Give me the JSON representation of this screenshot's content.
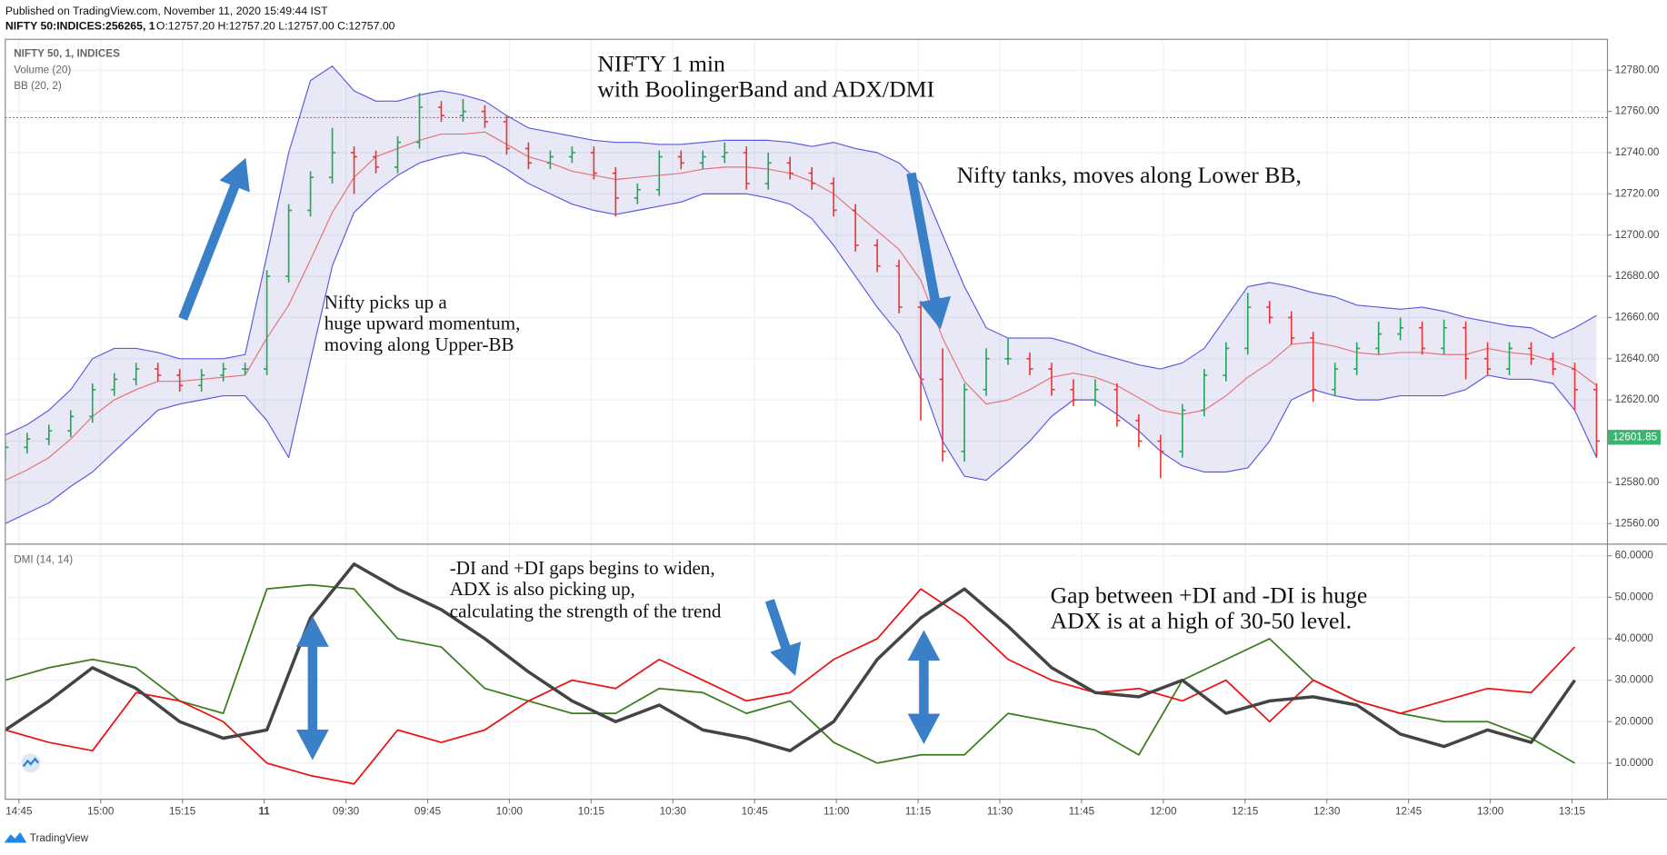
{
  "header": {
    "published": "Published on TradingView.com, November 11, 2020 15:49:44 IST",
    "symbol": "NIFTY 50:INDICES:256265, 1",
    "ohlc": "O:12757.20 H:12757.20 L:12757.00 C:12757.00"
  },
  "footer": "TradingView",
  "chart_data": [
    {
      "type": "candlestick",
      "legend_title": "NIFTY 50, 1, INDICES",
      "indicator_labels": [
        "Volume (20)",
        "BB (20, 2)"
      ],
      "annotations": [
        {
          "lines": [
            "NIFTY 1 min",
            "with BoolingerBand and ADX/DMI"
          ]
        },
        {
          "lines": [
            "Nifty tanks, moves along Lower BB,"
          ]
        },
        {
          "lines": [
            "Nifty picks  up a",
            "huge upward momentum,",
            "moving along Upper-BB"
          ]
        }
      ],
      "xlim": [
        0,
        294
      ],
      "ylim": [
        12550,
        12795
      ],
      "yticks": [
        {
          "value": 12560,
          "label": "12560.00"
        },
        {
          "value": 12580,
          "label": "12580.00"
        },
        {
          "value": 12600,
          "label": "12600.00"
        },
        {
          "value": 12620,
          "label": "12620.00"
        },
        {
          "value": 12640,
          "label": "12640.00"
        },
        {
          "value": 12660,
          "label": "12660.00"
        },
        {
          "value": 12680,
          "label": "12680.00"
        },
        {
          "value": 12700,
          "label": "12700.00"
        },
        {
          "value": 12720,
          "label": "12720.00"
        },
        {
          "value": 12740,
          "label": "12740.00"
        },
        {
          "value": 12760,
          "label": "12760.00"
        },
        {
          "value": 12780,
          "label": "12780.00"
        }
      ],
      "grid": true,
      "up_color": "#26a65b",
      "down_color": "#e53935",
      "band_fill": "rgba(110,110,200,0.16)",
      "hline": 12757,
      "hline_color": "#e53935",
      "last_price": {
        "value": 12601.85,
        "label": "12601.85"
      },
      "last_price_color": "#3cb371",
      "x": [
        0,
        4,
        8,
        12,
        16,
        20,
        24,
        28,
        32,
        36,
        40,
        44,
        48,
        52,
        56,
        60,
        64,
        68,
        72,
        76,
        80,
        84,
        88,
        92,
        96,
        100,
        104,
        108,
        112,
        116,
        120,
        124,
        128,
        132,
        136,
        140,
        144,
        148,
        152,
        156,
        160,
        164,
        168,
        172,
        176,
        180,
        184,
        188,
        192,
        196,
        200,
        204,
        208,
        212,
        216,
        220,
        224,
        228,
        232,
        236,
        240,
        244,
        248,
        252,
        256,
        260,
        264,
        268,
        272,
        276,
        280,
        284,
        288,
        292
      ],
      "open": [
        12593,
        12597,
        12601,
        12605,
        12612,
        12625,
        12630,
        12635,
        12632,
        12627,
        12632,
        12635,
        12635,
        12680,
        12712,
        12728,
        12740,
        12738,
        12733,
        12745,
        12762,
        12758,
        12760,
        12755,
        12742,
        12735,
        12738,
        12740,
        12730,
        12718,
        12722,
        12738,
        12735,
        12738,
        12740,
        12725,
        12735,
        12730,
        12725,
        12712,
        12695,
        12685,
        12665,
        12630,
        12595,
        12625,
        12640,
        12640,
        12635,
        12625,
        12620,
        12625,
        12610,
        12600,
        12595,
        12615,
        12632,
        12645,
        12665,
        12660,
        12650,
        12625,
        12635,
        12645,
        12652,
        12655,
        12645,
        12655,
        12640,
        12635,
        12645,
        12640,
        12635,
        12625
      ],
      "high": [
        12600,
        12604,
        12608,
        12615,
        12628,
        12633,
        12638,
        12638,
        12635,
        12635,
        12638,
        12638,
        12683,
        12715,
        12731,
        12752,
        12743,
        12741,
        12748,
        12769,
        12765,
        12766,
        12763,
        12758,
        12745,
        12741,
        12743,
        12743,
        12733,
        12725,
        12741,
        12741,
        12741,
        12745,
        12743,
        12740,
        12738,
        12733,
        12728,
        12715,
        12698,
        12688,
        12668,
        12645,
        12628,
        12645,
        12650,
        12643,
        12638,
        12630,
        12630,
        12628,
        12613,
        12603,
        12618,
        12635,
        12648,
        12672,
        12668,
        12663,
        12653,
        12638,
        12648,
        12658,
        12660,
        12658,
        12659,
        12658,
        12648,
        12648,
        12648,
        12643,
        12638,
        12628
      ],
      "low": [
        12590,
        12594,
        12598,
        12602,
        12609,
        12622,
        12627,
        12629,
        12624,
        12624,
        12629,
        12632,
        12632,
        12677,
        12709,
        12725,
        12720,
        12730,
        12730,
        12742,
        12755,
        12755,
        12752,
        12739,
        12732,
        12732,
        12735,
        12727,
        12709,
        12715,
        12719,
        12732,
        12732,
        12735,
        12722,
        12722,
        12727,
        12722,
        12709,
        12692,
        12682,
        12662,
        12610,
        12590,
        12590,
        12622,
        12637,
        12632,
        12622,
        12617,
        12617,
        12607,
        12597,
        12582,
        12592,
        12612,
        12629,
        12642,
        12657,
        12647,
        12619,
        12622,
        12632,
        12642,
        12649,
        12642,
        12642,
        12630,
        12632,
        12632,
        12637,
        12632,
        12615,
        12592
      ],
      "close": [
        12597,
        12601,
        12605,
        12612,
        12625,
        12630,
        12635,
        12632,
        12627,
        12632,
        12635,
        12635,
        12680,
        12712,
        12728,
        12740,
        12738,
        12733,
        12745,
        12762,
        12758,
        12760,
        12755,
        12742,
        12735,
        12738,
        12740,
        12730,
        12718,
        12722,
        12738,
        12735,
        12738,
        12740,
        12725,
        12735,
        12730,
        12725,
        12712,
        12695,
        12685,
        12665,
        12630,
        12595,
        12625,
        12640,
        12640,
        12635,
        12625,
        12620,
        12625,
        12610,
        12600,
        12595,
        12615,
        12632,
        12645,
        12665,
        12660,
        12650,
        12625,
        12635,
        12645,
        12652,
        12655,
        12645,
        12655,
        12640,
        12635,
        12645,
        12640,
        12635,
        12625,
        12600
      ],
      "series": [
        {
          "color": "#5a5ae0",
          "values": [
            12603,
            12608,
            12615,
            12625,
            12640,
            12645,
            12645,
            12643,
            12640,
            12640,
            12640,
            12642,
            12690,
            12740,
            12775,
            12782,
            12770,
            12765,
            12765,
            12768,
            12770,
            12768,
            12765,
            12758,
            12752,
            12750,
            12748,
            12746,
            12745,
            12745,
            12744,
            12744,
            12745,
            12746,
            12746,
            12746,
            12745,
            12743,
            12745,
            12742,
            12740,
            12735,
            12725,
            12700,
            12675,
            12655,
            12650,
            12650,
            12650,
            12647,
            12643,
            12640,
            12637,
            12635,
            12638,
            12645,
            12660,
            12675,
            12677,
            12675,
            12672,
            12670,
            12666,
            12665,
            12664,
            12665,
            12663,
            12660,
            12658,
            12656,
            12655,
            12650,
            12655,
            12661
          ]
        },
        {
          "color": "#e57373",
          "values": [
            12581,
            12586,
            12592,
            12601,
            12612,
            12620,
            12625,
            12629,
            12629,
            12630,
            12631,
            12632,
            12650,
            12666,
            12688,
            12711,
            12728,
            12738,
            12742,
            12746,
            12749,
            12749,
            12750,
            12744,
            12738,
            12735,
            12731,
            12729,
            12727,
            12728,
            12729,
            12730,
            12732,
            12733,
            12733,
            12732,
            12730,
            12726,
            12720,
            12711,
            12702,
            12693,
            12678,
            12650,
            12629,
            12618,
            12620,
            12625,
            12631,
            12633,
            12631,
            12627,
            12621,
            12615,
            12613,
            12615,
            12622,
            12631,
            12638,
            12647,
            12648,
            12646,
            12643,
            12642,
            12643,
            12643,
            12642,
            12642,
            12645,
            12643,
            12642,
            12639,
            12635,
            12627
          ]
        },
        {
          "color": "#5a5ae0",
          "values": [
            12560,
            12565,
            12570,
            12578,
            12585,
            12595,
            12605,
            12615,
            12618,
            12620,
            12622,
            12622,
            12610,
            12592,
            12639,
            12685,
            12711,
            12721,
            12729,
            12735,
            12738,
            12740,
            12738,
            12732,
            12725,
            12720,
            12715,
            12712,
            12710,
            12712,
            12714,
            12716,
            12720,
            12720,
            12720,
            12718,
            12715,
            12708,
            12695,
            12680,
            12665,
            12652,
            12630,
            12600,
            12583,
            12581,
            12590,
            12600,
            12612,
            12620,
            12620,
            12613,
            12605,
            12595,
            12588,
            12585,
            12585,
            12587,
            12600,
            12620,
            12625,
            12622,
            12620,
            12620,
            12622,
            12622,
            12622,
            12625,
            12632,
            12630,
            12630,
            12628,
            12615,
            12592
          ]
        }
      ]
    },
    {
      "type": "line",
      "legend_title": "DMI (14, 14)",
      "annotations": [
        {
          "lines": [
            "-DI and +DI gaps begins to widen,",
            "ADX is also picking up,",
            "calculating the strength of the trend"
          ]
        },
        {
          "lines": [
            "Gap between +DI and -DI is huge",
            "ADX is at a high of 30-50 level."
          ]
        }
      ],
      "xlim": [
        0,
        294
      ],
      "ylim": [
        1.3,
        62.8
      ],
      "yticks": [
        {
          "value": 10,
          "label": "10.0000"
        },
        {
          "value": 20,
          "label": "20.0000"
        },
        {
          "value": 30,
          "label": "30.0000"
        },
        {
          "value": 40,
          "label": "40.0000"
        },
        {
          "value": 50,
          "label": "50.0000"
        },
        {
          "value": 60,
          "label": "60.0000"
        }
      ],
      "xticks": [
        {
          "value": 2.5,
          "label": "14:45"
        },
        {
          "value": 17.5,
          "label": "15:00"
        },
        {
          "value": 32.5,
          "label": "15:15"
        },
        {
          "value": 47.5,
          "label": "11"
        },
        {
          "value": 62.5,
          "label": "09:30"
        },
        {
          "value": 77.5,
          "label": "09:45"
        },
        {
          "value": 92.5,
          "label": "10:00"
        },
        {
          "value": 107.5,
          "label": "10:15"
        },
        {
          "value": 122.5,
          "label": "10:30"
        },
        {
          "value": 137.5,
          "label": "10:45"
        },
        {
          "value": 152.5,
          "label": "11:00"
        },
        {
          "value": 167.5,
          "label": "11:15"
        },
        {
          "value": 182.5,
          "label": "11:30"
        },
        {
          "value": 197.5,
          "label": "11:45"
        },
        {
          "value": 212.5,
          "label": "12:00"
        },
        {
          "value": 227.5,
          "label": "12:15"
        },
        {
          "value": 242.5,
          "label": "12:30"
        },
        {
          "value": 257.5,
          "label": "12:45"
        },
        {
          "value": 272.5,
          "label": "13:00"
        },
        {
          "value": 287.5,
          "label": "13:15"
        }
      ],
      "grid": true,
      "x": [
        0,
        8,
        16,
        24,
        32,
        40,
        48,
        56,
        64,
        72,
        80,
        88,
        96,
        104,
        112,
        120,
        128,
        136,
        144,
        152,
        160,
        168,
        176,
        184,
        192,
        200,
        208,
        216,
        224,
        232,
        240,
        248,
        256,
        264,
        272,
        280,
        288
      ],
      "series": [
        {
          "color": "#3a7d1c",
          "width": 1.5,
          "values": [
            30,
            33,
            35,
            33,
            25,
            22,
            52,
            53,
            52,
            40,
            38,
            28,
            25,
            22,
            22,
            28,
            27,
            22,
            25,
            15,
            10,
            12,
            12,
            22,
            20,
            18,
            12,
            30,
            35,
            40,
            30,
            25,
            22,
            20,
            20,
            16,
            10
          ]
        },
        {
          "color": "#ee1111",
          "width": 1.5,
          "values": [
            18,
            15,
            13,
            27,
            25,
            20,
            10,
            7,
            5,
            18,
            15,
            18,
            25,
            30,
            28,
            35,
            30,
            25,
            27,
            35,
            40,
            52,
            45,
            35,
            30,
            27,
            28,
            25,
            30,
            20,
            30,
            25,
            22,
            25,
            28,
            27,
            38
          ]
        },
        {
          "color": "#444444",
          "width": 3,
          "values": [
            18,
            25,
            33,
            28,
            20,
            16,
            18,
            45,
            58,
            52,
            47,
            40,
            32,
            25,
            20,
            24,
            18,
            16,
            13,
            20,
            35,
            45,
            52,
            43,
            33,
            27,
            26,
            30,
            22,
            25,
            26,
            24,
            17,
            14,
            18,
            15,
            30
          ]
        }
      ]
    }
  ]
}
